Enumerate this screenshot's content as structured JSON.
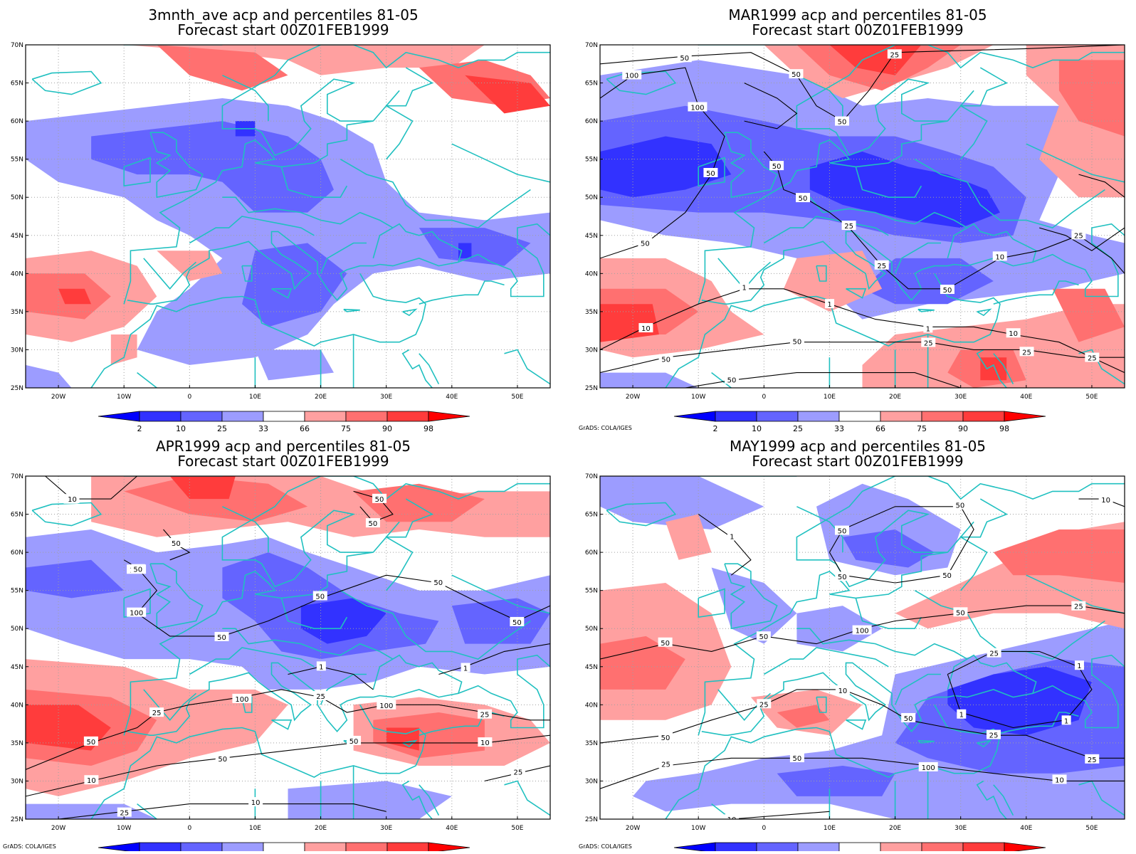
{
  "panels": [
    {
      "title_line1": "3mnth_ave acp and percentiles 81-05",
      "title_line2": "Forecast start 00Z01FEB1999",
      "grads_credit": "",
      "contour_labels": []
    },
    {
      "title_line1": "MAR1999 acp and percentiles 81-05",
      "title_line2": "Forecast start 00Z01FEB1999",
      "grads_credit": "GrADS: COLA/IGES",
      "contour_labels": [
        "100",
        "100",
        "50",
        "50",
        "50",
        "50",
        "50",
        "25",
        "50",
        "50",
        "25",
        "25",
        "50",
        "10",
        "25",
        "10",
        "1",
        "1",
        "1",
        "10",
        "25",
        "50",
        "50",
        "25",
        "25",
        "50"
      ]
    },
    {
      "title_line1": "APR1999 acp and percentiles 81-05",
      "title_line2": "Forecast start 00Z01FEB1999",
      "grads_credit": "GrADS: COLA/IGES",
      "contour_labels": [
        "50",
        "100",
        "100",
        "50",
        "50",
        "50",
        "50",
        "50",
        "50",
        "50",
        "50",
        "25",
        "100",
        "25",
        "100",
        "25",
        "10",
        "50",
        "50",
        "10",
        "25",
        "10",
        "1",
        "1",
        "25",
        "10",
        "50"
      ]
    },
    {
      "title_line1": "MAY1999 acp and percentiles 81-05",
      "title_line2": "Forecast start 00Z01FEB1999",
      "grads_credit": "GrADS: COLA/IGES",
      "contour_labels": [
        "50",
        "50",
        "50",
        "50",
        "50",
        "50",
        "100",
        "50",
        "25",
        "50",
        "25",
        "10",
        "50",
        "25",
        "25",
        "25",
        "50",
        "100",
        "10",
        "10",
        "25",
        "1",
        "1",
        "1",
        "1",
        "10"
      ]
    }
  ],
  "axes": {
    "lat_labels": [
      "70N",
      "65N",
      "60N",
      "55N",
      "50N",
      "45N",
      "40N",
      "35N",
      "30N",
      "25N"
    ],
    "lon_labels": [
      "20W",
      "10W",
      "0",
      "10E",
      "20E",
      "30E",
      "40E",
      "50E"
    ]
  },
  "colorbar": {
    "labels": [
      "2",
      "10",
      "25",
      "33",
      "66",
      "75",
      "90",
      "98"
    ],
    "colors": [
      "#0000ff",
      "#3232ff",
      "#6464ff",
      "#9c9cff",
      "#ffffff",
      "#ffa0a0",
      "#ff7070",
      "#ff3c3c",
      "#ff0000"
    ]
  },
  "colors": {
    "coastline": "#20c0c0",
    "contour": "#000000",
    "grid": "#a0a0a0"
  }
}
